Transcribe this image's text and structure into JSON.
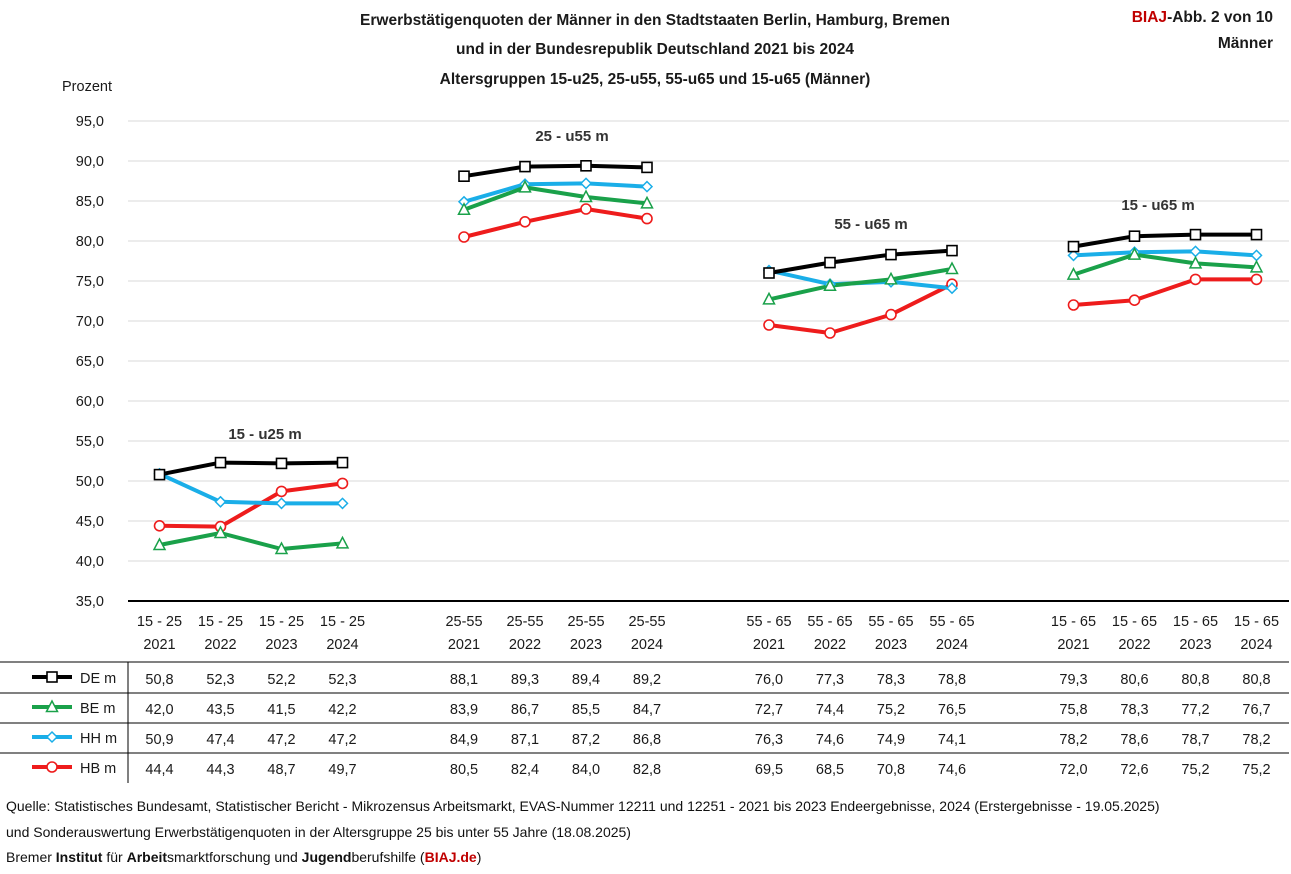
{
  "header": {
    "title_line1": "Erwerbstätigenquoten der Männer in den Stadtstaaten Berlin, Hamburg, Bremen",
    "title_line2": "und in der Bundesrepublik Deutschland 2021 bis 2024",
    "title_line3": "Altersgruppen 15-u25, 25-u55, 55-u65 und 15-u65 (Männer)",
    "badge_brand": "BIAJ",
    "badge_rest": "-Abb. 2 von 10",
    "badge_line2": "Männer"
  },
  "footer": {
    "line1": "Quelle: Statistisches Bundesamt, Statistischer Bericht - Mikrozensus Arbeitsmarkt, EVAS-Nummer 12211 und 12251 - 2021 bis 2023 Endeergebnisse, 2024 (Erstergebnisse - 19.05.2025)",
    "line2": "und Sonderauswertung Erwerbstätigenquoten in der Altersgruppe 25 bis unter 55 Jahre (18.08.2025)",
    "line3_parts": [
      "Bremer ",
      "Institut",
      " für ",
      "Arbeit",
      "smarktforschung und ",
      "Jugend",
      "berufshilfe (",
      "BIAJ.de",
      ")"
    ]
  },
  "chart_data": {
    "type": "line",
    "ylabel": "Prozent",
    "ylim": [
      35,
      95
    ],
    "yticks": [
      "35,0",
      "40,0",
      "45,0",
      "50,0",
      "55,0",
      "60,0",
      "65,0",
      "70,0",
      "75,0",
      "80,0",
      "85,0",
      "90,0",
      "95,0"
    ],
    "grid": true,
    "legend_placement": "data-table-left",
    "groups": [
      {
        "label": "15 - u25 m",
        "categories": [
          [
            "15 - 25",
            "2021"
          ],
          [
            "15 - 25",
            "2022"
          ],
          [
            "15 - 25",
            "2023"
          ],
          [
            "15 - 25",
            "2024"
          ]
        ]
      },
      {
        "label": "25 - u55 m",
        "categories": [
          [
            "25-55",
            "2021"
          ],
          [
            "25-55",
            "2022"
          ],
          [
            "25-55",
            "2023"
          ],
          [
            "25-55",
            "2024"
          ]
        ]
      },
      {
        "label": "55 - u65 m",
        "categories": [
          [
            "55 - 65",
            "2021"
          ],
          [
            "55 - 65",
            "2022"
          ],
          [
            "55 - 65",
            "2023"
          ],
          [
            "55 - 65",
            "2024"
          ]
        ]
      },
      {
        "label": "15 - u65 m",
        "categories": [
          [
            "15 - 65",
            "2021"
          ],
          [
            "15 - 65",
            "2022"
          ],
          [
            "15 - 65",
            "2023"
          ],
          [
            "15 - 65",
            "2024"
          ]
        ]
      }
    ],
    "series": [
      {
        "name": "DE m",
        "color": "#000000",
        "marker": "square",
        "values": [
          50.8,
          52.3,
          52.2,
          52.3,
          88.1,
          89.3,
          89.4,
          89.2,
          76.0,
          77.3,
          78.3,
          78.8,
          79.3,
          80.6,
          80.8,
          80.8
        ],
        "labels": [
          "50,8",
          "52,3",
          "52,2",
          "52,3",
          "88,1",
          "89,3",
          "89,4",
          "89,2",
          "76,0",
          "77,3",
          "78,3",
          "78,8",
          "79,3",
          "80,6",
          "80,8",
          "80,8"
        ]
      },
      {
        "name": "BE m",
        "color": "#1aa14a",
        "marker": "triangle",
        "values": [
          42.0,
          43.5,
          41.5,
          42.2,
          83.9,
          86.7,
          85.5,
          84.7,
          72.7,
          74.4,
          75.2,
          76.5,
          75.8,
          78.3,
          77.2,
          76.7
        ],
        "labels": [
          "42,0",
          "43,5",
          "41,5",
          "42,2",
          "83,9",
          "86,7",
          "85,5",
          "84,7",
          "72,7",
          "74,4",
          "75,2",
          "76,5",
          "75,8",
          "78,3",
          "77,2",
          "76,7"
        ]
      },
      {
        "name": "HH m",
        "color": "#1aaee8",
        "marker": "diamond",
        "values": [
          50.9,
          47.4,
          47.2,
          47.2,
          84.9,
          87.1,
          87.2,
          86.8,
          76.3,
          74.6,
          74.9,
          74.1,
          78.2,
          78.6,
          78.7,
          78.2
        ],
        "labels": [
          "50,9",
          "47,4",
          "47,2",
          "47,2",
          "84,9",
          "87,1",
          "87,2",
          "86,8",
          "76,3",
          "74,6",
          "74,9",
          "74,1",
          "78,2",
          "78,6",
          "78,7",
          "78,2"
        ]
      },
      {
        "name": "HB m",
        "color": "#ee1c1c",
        "marker": "circle",
        "values": [
          44.4,
          44.3,
          48.7,
          49.7,
          80.5,
          82.4,
          84.0,
          82.8,
          69.5,
          68.5,
          70.8,
          74.6,
          72.0,
          72.6,
          75.2,
          75.2
        ],
        "labels": [
          "44,4",
          "44,3",
          "48,7",
          "49,7",
          "80,5",
          "82,4",
          "84,0",
          "82,8",
          "69,5",
          "68,5",
          "70,8",
          "74,6",
          "72,0",
          "72,6",
          "75,2",
          "75,2"
        ]
      }
    ]
  }
}
